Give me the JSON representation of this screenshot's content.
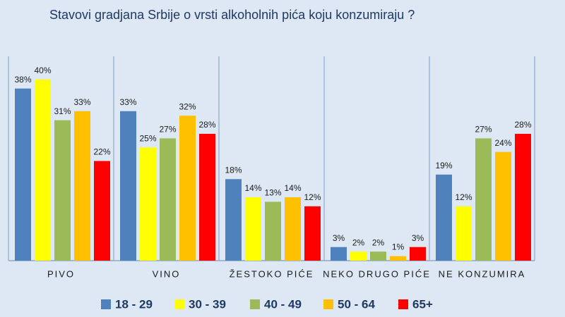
{
  "chart_data": {
    "type": "bar",
    "title": "Stavovi gradjana Srbije  o vrsti alkoholnih pića koju konzumiraju ?",
    "categories": [
      "PIVO",
      "VINO",
      "ŽESTOKO PIĆE",
      "NEKO DRUGO PIĆE",
      "NE KONZUMIRA"
    ],
    "series": [
      {
        "name": "18 - 29",
        "color": "#4f81bd",
        "values": [
          38,
          33,
          18,
          3,
          19
        ],
        "value_labels": [
          "38%",
          "33%",
          "18%",
          "3%",
          "19%"
        ]
      },
      {
        "name": "30 - 39",
        "color": "#ffff00",
        "values": [
          40,
          25,
          14,
          2,
          12
        ],
        "value_labels": [
          "40%",
          "25%",
          "14%",
          "2%",
          "12%"
        ]
      },
      {
        "name": "40 - 49",
        "color": "#9bbb59",
        "values": [
          31,
          27,
          13,
          2,
          27
        ],
        "value_labels": [
          "31%",
          "27%",
          "13%",
          "2%",
          "27%"
        ]
      },
      {
        "name": "50 - 64",
        "color": "#ffc000",
        "values": [
          33,
          32,
          14,
          1,
          24
        ],
        "value_labels": [
          "33%",
          "32%",
          "14%",
          "1%",
          "24%"
        ]
      },
      {
        "name": "65+",
        "color": "#ff0000",
        "values": [
          22,
          28,
          12,
          3,
          28
        ],
        "value_labels": [
          "22%",
          "28%",
          "12%",
          "3%",
          "28%"
        ]
      }
    ],
    "legend": "bottom"
  }
}
